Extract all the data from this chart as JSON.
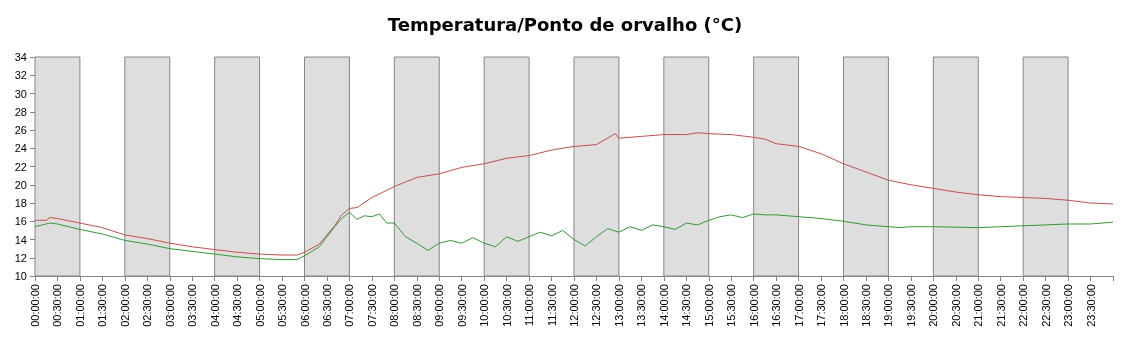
{
  "chart_data": {
    "type": "line",
    "title": "Temperatura/Ponto de orvalho (°C)",
    "xlim": [
      0,
      24
    ],
    "ylim": [
      10,
      34
    ],
    "xticks": [
      {
        "value": 0,
        "label": "00:00:00"
      },
      {
        "value": 0.5,
        "label": "00:30:00"
      },
      {
        "value": 1,
        "label": "01:00:00"
      },
      {
        "value": 1.5,
        "label": "01:30:00"
      },
      {
        "value": 2,
        "label": "02:00:00"
      },
      {
        "value": 2.5,
        "label": "02:30:00"
      },
      {
        "value": 3,
        "label": "03:00:00"
      },
      {
        "value": 3.5,
        "label": "03:30:00"
      },
      {
        "value": 4,
        "label": "04:00:00"
      },
      {
        "value": 4.5,
        "label": "04:30:00"
      },
      {
        "value": 5,
        "label": "05:00:00"
      },
      {
        "value": 5.5,
        "label": "05:30:00"
      },
      {
        "value": 6,
        "label": "06:00:00"
      },
      {
        "value": 6.5,
        "label": "06:30:00"
      },
      {
        "value": 7,
        "label": "07:00:00"
      },
      {
        "value": 7.5,
        "label": "07:30:00"
      },
      {
        "value": 8,
        "label": "08:00:00"
      },
      {
        "value": 8.5,
        "label": "08:30:00"
      },
      {
        "value": 9,
        "label": "09:00:00"
      },
      {
        "value": 9.5,
        "label": "09:30:00"
      },
      {
        "value": 10,
        "label": "10:00:00"
      },
      {
        "value": 10.5,
        "label": "10:30:00"
      },
      {
        "value": 11,
        "label": "11:00:00"
      },
      {
        "value": 11.5,
        "label": "11:30:00"
      },
      {
        "value": 12,
        "label": "12:00:00"
      },
      {
        "value": 12.5,
        "label": "12:30:00"
      },
      {
        "value": 13,
        "label": "13:00:00"
      },
      {
        "value": 13.5,
        "label": "13:30:00"
      },
      {
        "value": 14,
        "label": "14:00:00"
      },
      {
        "value": 14.5,
        "label": "14:30:00"
      },
      {
        "value": 15,
        "label": "15:00:00"
      },
      {
        "value": 15.5,
        "label": "15:30:00"
      },
      {
        "value": 16,
        "label": "16:00:00"
      },
      {
        "value": 16.5,
        "label": "16:30:00"
      },
      {
        "value": 17,
        "label": "17:00:00"
      },
      {
        "value": 17.5,
        "label": "17:30:00"
      },
      {
        "value": 18,
        "label": "18:00:00"
      },
      {
        "value": 18.5,
        "label": "18:30:00"
      },
      {
        "value": 19,
        "label": "19:00:00"
      },
      {
        "value": 19.5,
        "label": "19:30:00"
      },
      {
        "value": 20,
        "label": "20:00:00"
      },
      {
        "value": 20.5,
        "label": "20:30:00"
      },
      {
        "value": 21,
        "label": "21:00:00"
      },
      {
        "value": 21.5,
        "label": "21:30:00"
      },
      {
        "value": 22,
        "label": "22:00:00"
      },
      {
        "value": 22.5,
        "label": "22:30:00"
      },
      {
        "value": 23,
        "label": "23:00:00"
      },
      {
        "value": 23.5,
        "label": "23:30:00"
      },
      {
        "value": 24,
        "label": null
      }
    ],
    "yticks": [
      10,
      12,
      14,
      16,
      18,
      20,
      22,
      24,
      26,
      28,
      30,
      32,
      34
    ],
    "grid": false,
    "marker": "none",
    "bands": [
      {
        "axis": "x",
        "from": 0,
        "to": 1,
        "color": "#dedede"
      },
      {
        "axis": "x",
        "from": 2,
        "to": 3,
        "color": "#dedede"
      },
      {
        "axis": "x",
        "from": 4,
        "to": 5,
        "color": "#dedede"
      },
      {
        "axis": "x",
        "from": 6,
        "to": 7,
        "color": "#dedede"
      },
      {
        "axis": "x",
        "from": 8,
        "to": 9,
        "color": "#dedede"
      },
      {
        "axis": "x",
        "from": 10,
        "to": 11,
        "color": "#dedede"
      },
      {
        "axis": "x",
        "from": 12,
        "to": 13,
        "color": "#dedede"
      },
      {
        "axis": "x",
        "from": 14,
        "to": 15,
        "color": "#dedede"
      },
      {
        "axis": "x",
        "from": 16,
        "to": 17,
        "color": "#dedede"
      },
      {
        "axis": "x",
        "from": 18,
        "to": 19,
        "color": "#dedede"
      },
      {
        "axis": "x",
        "from": 20,
        "to": 21,
        "color": "#dedede"
      },
      {
        "axis": "x",
        "from": 22,
        "to": 23,
        "color": "#dedede"
      }
    ],
    "series": [
      {
        "color": "#c0504d",
        "x": [
          0,
          0.25,
          0.33,
          0.5,
          1,
          1.5,
          2,
          2.5,
          3,
          3.5,
          4,
          4.5,
          5,
          5.5,
          5.83,
          6,
          6.33,
          6.67,
          6.83,
          7,
          7.17,
          7.5,
          8,
          8.5,
          9,
          9.5,
          10,
          10.5,
          11,
          11.5,
          12,
          12.5,
          12.92,
          13,
          13.5,
          14,
          14.5,
          14.75,
          15,
          15.5,
          16,
          16.25,
          16.5,
          17,
          17.5,
          18,
          18.5,
          19,
          19.5,
          20,
          20.5,
          21,
          21.5,
          22,
          22.5,
          23,
          23.5,
          24
        ],
        "values": [
          16.1,
          16.1,
          16.4,
          16.3,
          15.8,
          15.3,
          14.5,
          14.1,
          13.6,
          13.2,
          12.9,
          12.6,
          12.4,
          12.3,
          12.3,
          12.6,
          13.5,
          15.5,
          16.7,
          17.4,
          17.5,
          18.6,
          19.8,
          20.8,
          21.2,
          21.9,
          22.3,
          22.9,
          23.2,
          23.8,
          24.2,
          24.4,
          25.6,
          25.1,
          25.3,
          25.5,
          25.5,
          25.7,
          25.6,
          25.5,
          25.2,
          25.0,
          24.5,
          24.2,
          23.4,
          22.3,
          21.4,
          20.5,
          20.0,
          19.6,
          19.2,
          18.9,
          18.7,
          18.6,
          18.5,
          18.3,
          18.0,
          17.9
        ]
      },
      {
        "color": "#339933",
        "x": [
          0,
          0.33,
          0.5,
          1,
          1.5,
          2,
          2.5,
          3,
          3.5,
          4,
          4.5,
          5,
          5.5,
          5.83,
          6,
          6.33,
          6.67,
          6.83,
          7,
          7.17,
          7.33,
          7.5,
          7.67,
          7.83,
          8,
          8.25,
          8.5,
          8.75,
          9,
          9.25,
          9.5,
          9.75,
          10,
          10.25,
          10.5,
          10.75,
          11,
          11.25,
          11.5,
          11.75,
          12,
          12.25,
          12.5,
          12.75,
          13,
          13.25,
          13.5,
          13.75,
          14,
          14.25,
          14.5,
          14.75,
          15,
          15.25,
          15.5,
          15.75,
          16,
          16.25,
          16.5,
          17,
          17.5,
          18,
          18.5,
          19,
          19.25,
          19.5,
          20,
          21,
          21.5,
          22,
          22.5,
          23,
          23.5,
          24
        ],
        "values": [
          15.4,
          15.8,
          15.7,
          15.1,
          14.6,
          13.9,
          13.5,
          13.0,
          12.7,
          12.4,
          12.1,
          11.9,
          11.8,
          11.8,
          12.2,
          13.2,
          15.4,
          16.3,
          17.0,
          16.2,
          16.6,
          16.5,
          16.8,
          15.8,
          15.8,
          14.3,
          13.6,
          12.8,
          13.6,
          13.9,
          13.6,
          14.2,
          13.6,
          13.2,
          14.3,
          13.8,
          14.3,
          14.8,
          14.4,
          15.0,
          14.0,
          13.3,
          14.3,
          15.2,
          14.8,
          15.4,
          15.0,
          15.6,
          15.4,
          15.1,
          15.8,
          15.6,
          16.1,
          16.5,
          16.7,
          16.4,
          16.8,
          16.7,
          16.7,
          16.5,
          16.3,
          16.0,
          15.6,
          15.4,
          15.3,
          15.4,
          15.4,
          15.3,
          15.4,
          15.5,
          15.6,
          15.7,
          15.7,
          15.9
        ]
      }
    ]
  }
}
